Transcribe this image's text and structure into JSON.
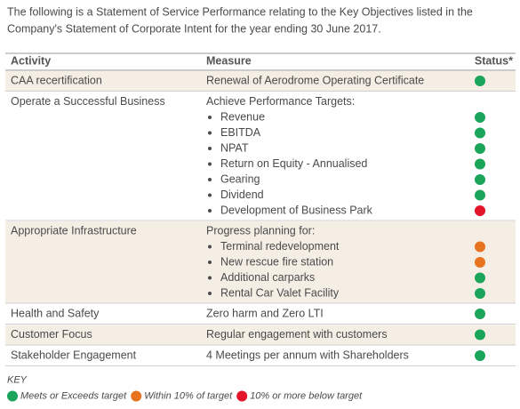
{
  "intro_lines": [
    "The following is a Statement of Service Performance relating to the Key Objectives listed in the",
    "Company's Statement of Corporate Intent for the year ending 30 June 2017."
  ],
  "table": {
    "headers": [
      "Activity",
      "Measure",
      "Status*"
    ],
    "rows": [
      {
        "activity": "CAA recertification",
        "measure": "Renewal of Aerodrome Operating Certificate",
        "status_color": "#1aa55a"
      },
      {
        "activity": "Operate a Successful Business",
        "measure": "Achieve Performance Targets:",
        "items": [
          {
            "text": "Revenue",
            "status_color": "#1aa55a"
          },
          {
            "text": "EBITDA",
            "status_color": "#1aa55a"
          },
          {
            "text": "NPAT",
            "status_color": "#1aa55a"
          },
          {
            "text": "Return on Equity - Annualised",
            "status_color": "#1aa55a"
          },
          {
            "text": "Gearing",
            "status_color": "#1aa55a"
          },
          {
            "text": "Dividend",
            "status_color": "#1aa55a"
          },
          {
            "text": "Development of Business Park",
            "status_color": "#e3152a"
          }
        ]
      },
      {
        "activity": "Appropriate Infrastructure",
        "measure": "Progress planning for:",
        "items": [
          {
            "text": "Terminal redevelopment",
            "status_color": "#e8731f"
          },
          {
            "text": "New rescue fire station",
            "status_color": "#e8731f"
          },
          {
            "text": "Additional carparks",
            "status_color": "#1aa55a"
          },
          {
            "text": "Rental Car Valet Facility",
            "status_color": "#1aa55a"
          }
        ]
      },
      {
        "activity": "Health and Safety",
        "measure": "Zero harm and Zero LTI",
        "status_color": "#1aa55a"
      },
      {
        "activity": "Customer Focus",
        "measure": "Regular engagement with customers",
        "status_color": "#1aa55a"
      },
      {
        "activity": "Stakeholder Engagement",
        "measure": "4 Meetings per annum with Shareholders",
        "status_color": "#1aa55a"
      }
    ]
  },
  "key": {
    "title": "KEY",
    "items": [
      {
        "label": "Meets or Exceeds target",
        "color": "#1aa55a"
      },
      {
        "label": "Within 10% of target",
        "color": "#e8731f"
      },
      {
        "label": "10% or more below target",
        "color": "#e3152a"
      }
    ]
  }
}
